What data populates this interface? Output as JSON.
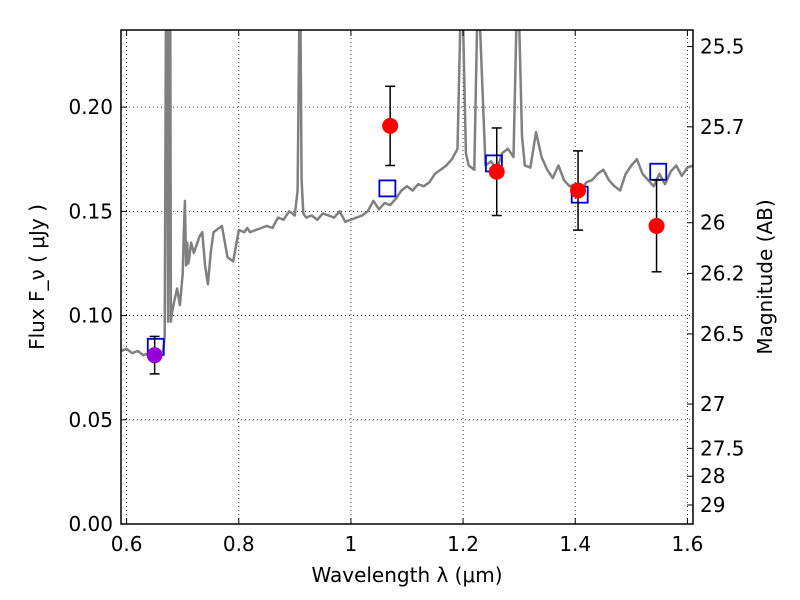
{
  "chart_data": {
    "type": "scatter",
    "xlabel": "Wavelength  λ (μm)",
    "ylabel": "Flux  F_ν  ( μJy )",
    "y2label": "Magnitude (AB)",
    "xlim": [
      0.59,
      1.61
    ],
    "ylim": [
      0.0,
      0.237
    ],
    "grid": true,
    "x_ticks": [
      "0.6",
      "0.8",
      "1",
      "1.2",
      "1.4",
      "1.6"
    ],
    "x_tick_values": [
      0.6,
      0.8,
      1.0,
      1.2,
      1.4,
      1.6
    ],
    "y_ticks": [
      "0.00",
      "0.05",
      "0.10",
      "0.15",
      "0.20"
    ],
    "y_tick_values": [
      0.0,
      0.05,
      0.1,
      0.15,
      0.2
    ],
    "mag_ticks": [
      "25.5",
      "25.7",
      "26",
      "26.2",
      "26.5",
      "27",
      "27.5",
      "28",
      "29"
    ],
    "colors": {
      "sed": "#808080",
      "observed": "#ff0000",
      "observed_first": "#9400d3",
      "model": "#0000cc",
      "error": "#000000"
    },
    "series": [
      {
        "kind": "line",
        "x": [
          0.59,
          0.6,
          0.61,
          0.62,
          0.63,
          0.64,
          0.65,
          0.66,
          0.665,
          0.668,
          0.67,
          0.672,
          0.674,
          0.676,
          0.678,
          0.679,
          0.68,
          0.685,
          0.69,
          0.695,
          0.7,
          0.702,
          0.704,
          0.706,
          0.708,
          0.71,
          0.712,
          0.715,
          0.72,
          0.725,
          0.73,
          0.735,
          0.74,
          0.745,
          0.75,
          0.755,
          0.76,
          0.77,
          0.78,
          0.79,
          0.8,
          0.81,
          0.815,
          0.82,
          0.83,
          0.84,
          0.85,
          0.86,
          0.87,
          0.88,
          0.89,
          0.9,
          0.905,
          0.908,
          0.91,
          0.912,
          0.915,
          0.92,
          0.93,
          0.94,
          0.95,
          0.96,
          0.97,
          0.98,
          0.99,
          1.0,
          1.01,
          1.02,
          1.03,
          1.04,
          1.05,
          1.06,
          1.07,
          1.08,
          1.09,
          1.1,
          1.11,
          1.12,
          1.13,
          1.14,
          1.15,
          1.16,
          1.17,
          1.18,
          1.19,
          1.195,
          1.2,
          1.205,
          1.21,
          1.22,
          1.225,
          1.23,
          1.24,
          1.25,
          1.26,
          1.27,
          1.28,
          1.29,
          1.295,
          1.3,
          1.305,
          1.31,
          1.32,
          1.33,
          1.34,
          1.35,
          1.36,
          1.37,
          1.38,
          1.39,
          1.4,
          1.41,
          1.42,
          1.43,
          1.44,
          1.45,
          1.46,
          1.47,
          1.48,
          1.49,
          1.5,
          1.51,
          1.52,
          1.53,
          1.54,
          1.55,
          1.56,
          1.57,
          1.58,
          1.59,
          1.6,
          1.61
        ],
        "y": [
          0.083,
          0.084,
          0.082,
          0.083,
          0.081,
          0.082,
          0.083,
          0.082,
          0.083,
          0.09,
          0.24,
          0.24,
          0.097,
          0.24,
          0.24,
          0.097,
          0.1,
          0.107,
          0.113,
          0.105,
          0.12,
          0.14,
          0.155,
          0.124,
          0.135,
          0.125,
          0.128,
          0.135,
          0.13,
          0.134,
          0.138,
          0.14,
          0.124,
          0.115,
          0.13,
          0.14,
          0.141,
          0.143,
          0.128,
          0.126,
          0.141,
          0.14,
          0.142,
          0.14,
          0.141,
          0.142,
          0.143,
          0.142,
          0.147,
          0.146,
          0.15,
          0.148,
          0.16,
          0.24,
          0.24,
          0.165,
          0.149,
          0.147,
          0.148,
          0.146,
          0.149,
          0.148,
          0.147,
          0.15,
          0.145,
          0.146,
          0.147,
          0.148,
          0.15,
          0.155,
          0.151,
          0.154,
          0.153,
          0.156,
          0.16,
          0.162,
          0.16,
          0.163,
          0.162,
          0.164,
          0.168,
          0.17,
          0.172,
          0.175,
          0.18,
          0.24,
          0.24,
          0.178,
          0.172,
          0.17,
          0.24,
          0.24,
          0.172,
          0.174,
          0.17,
          0.178,
          0.18,
          0.176,
          0.24,
          0.24,
          0.186,
          0.172,
          0.171,
          0.188,
          0.176,
          0.17,
          0.166,
          0.172,
          0.165,
          0.162,
          0.163,
          0.16,
          0.164,
          0.165,
          0.168,
          0.17,
          0.165,
          0.162,
          0.16,
          0.168,
          0.172,
          0.175,
          0.168,
          0.165,
          0.162,
          0.168,
          0.163,
          0.169,
          0.172,
          0.167,
          0.171,
          0.172
        ]
      },
      {
        "kind": "points",
        "x": [
          0.65,
          1.07,
          1.26,
          1.405,
          1.545
        ],
        "y": [
          0.081,
          0.191,
          0.169,
          0.16,
          0.143
        ],
        "yerr": [
          0.009,
          0.019,
          0.021,
          0.019,
          0.022
        ]
      },
      {
        "kind": "squares",
        "x": [
          0.652,
          1.065,
          1.255,
          1.408,
          1.548
        ],
        "y": [
          0.085,
          0.161,
          0.173,
          0.158,
          0.169
        ]
      }
    ]
  }
}
